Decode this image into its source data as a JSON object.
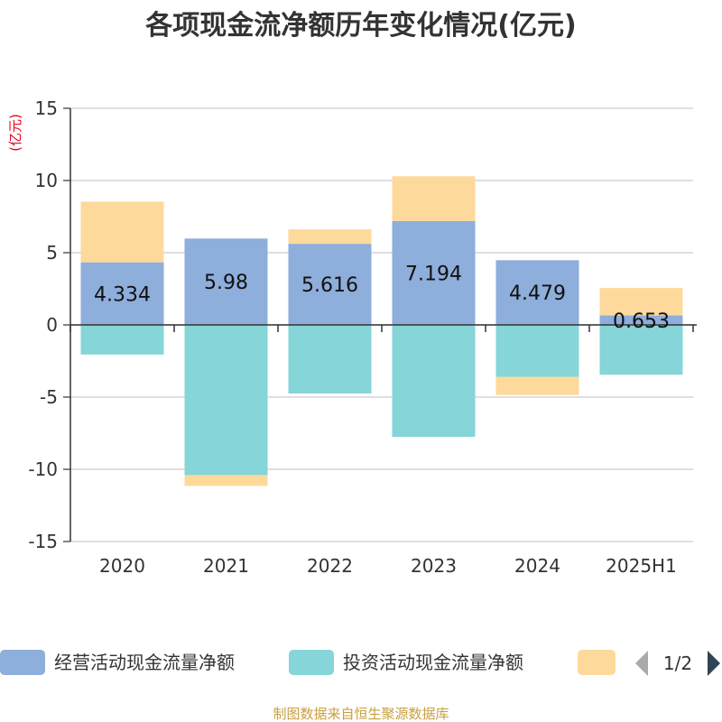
{
  "page": {
    "title": "各项现金流净额历年变化情况(亿元)",
    "source": "制图数据来自恒生聚源数据库"
  },
  "chart_data": {
    "type": "bar",
    "stacked": true,
    "title": "各项现金流净额历年变化情况(亿元)",
    "ylabel": "(亿元)",
    "categories": [
      "2020",
      "2021",
      "2022",
      "2023",
      "2024",
      "2025H1"
    ],
    "ylim": [
      -15,
      15
    ],
    "yticks": [
      15,
      10,
      5,
      0,
      -5,
      -10,
      -15
    ],
    "grid": true,
    "legend_position": "bottom",
    "series": [
      {
        "name": "经营活动现金流量净额",
        "color": "#8eaedb",
        "values": [
          4.334,
          5.98,
          5.616,
          7.194,
          4.479,
          0.653
        ],
        "labels": [
          "4.334",
          "5.98",
          "5.616",
          "7.194",
          "4.479",
          "0.653"
        ]
      },
      {
        "name": "投资活动现金流量净额",
        "color": "#86d5d8",
        "values": [
          -2.05,
          -10.4,
          -4.75,
          -7.75,
          -3.6,
          -3.45
        ]
      },
      {
        "name": "",
        "color": "#fdd99b",
        "values": [
          4.2,
          -0.75,
          1.0,
          3.1,
          -1.25,
          1.9
        ]
      }
    ]
  },
  "legend": {
    "items": [
      {
        "label": "经营活动现金流量净额",
        "color": "#8eaedb"
      },
      {
        "label": "投资活动现金流量净额",
        "color": "#86d5d8"
      },
      {
        "label": "",
        "color": "#fdd99b"
      }
    ],
    "pager": "1/2",
    "prev_color": "#aaaaaa",
    "next_color": "#2f4554"
  }
}
